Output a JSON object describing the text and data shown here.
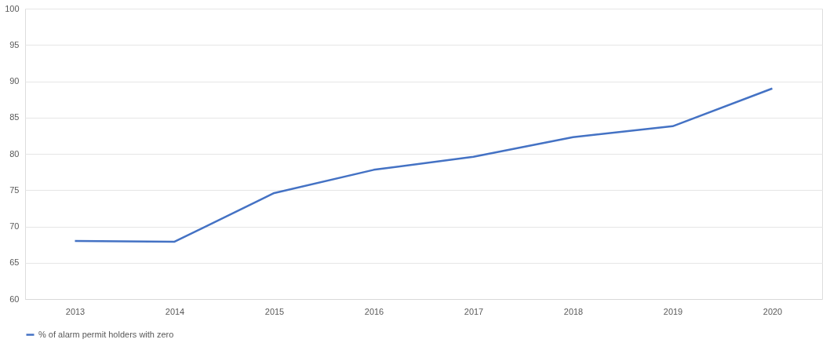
{
  "chart_data": {
    "type": "line",
    "categories": [
      "2013",
      "2014",
      "2015",
      "2016",
      "2017",
      "2018",
      "2019",
      "2020"
    ],
    "series": [
      {
        "name": "% of alarm permit holders with zero",
        "color": "#4472c4",
        "values": [
          68.0,
          67.9,
          74.6,
          77.8,
          79.6,
          82.3,
          83.8,
          89.0
        ]
      }
    ],
    "ylim": [
      60,
      100
    ],
    "yticks": [
      60,
      65,
      70,
      75,
      80,
      85,
      90,
      95,
      100
    ],
    "grid": "y",
    "legend": "bottom",
    "marker": "none",
    "line_style": "solid"
  }
}
